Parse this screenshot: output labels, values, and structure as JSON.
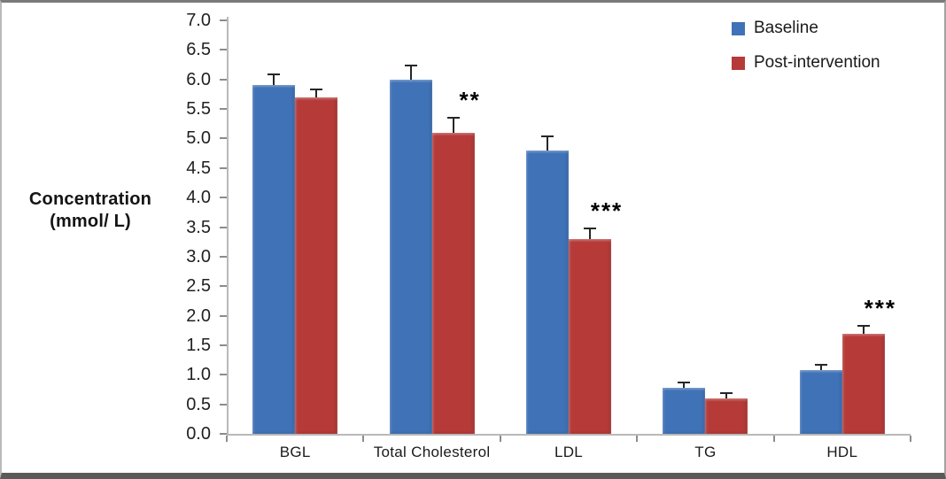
{
  "chart_data": {
    "type": "bar",
    "title": "",
    "ylabel_lines": [
      "Concentration",
      "(mmol/ L)"
    ],
    "categories": [
      "BGL",
      "Total Cholesterol",
      "LDL",
      "TG",
      "HDL"
    ],
    "series": [
      {
        "name": "Baseline",
        "color": "#3F72B7",
        "values": [
          5.9,
          6.0,
          4.8,
          0.78,
          1.08
        ],
        "errors": [
          0.2,
          0.25,
          0.25,
          0.1,
          0.1
        ]
      },
      {
        "name": "Post-intervention",
        "color": "#B53A38",
        "values": [
          5.7,
          5.1,
          3.3,
          0.6,
          1.7
        ],
        "errors": [
          0.15,
          0.27,
          0.2,
          0.1,
          0.15
        ]
      }
    ],
    "significance": [
      "",
      "**",
      "***",
      "",
      "***"
    ],
    "significance_on_series": "Post-intervention",
    "ylim": [
      0.0,
      7.0
    ],
    "ytick_step": 0.5,
    "ytick_labels": [
      "0.0",
      "0.5",
      "1.0",
      "1.5",
      "2.0",
      "2.5",
      "3.0",
      "3.5",
      "4.0",
      "4.5",
      "5.0",
      "5.5",
      "6.0",
      "6.5",
      "7.0"
    ],
    "grid": false,
    "legend_position": "top-right",
    "error_bar_direction": "plus"
  }
}
